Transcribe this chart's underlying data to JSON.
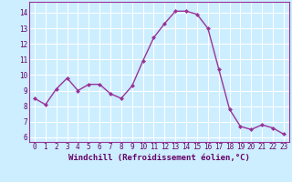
{
  "x": [
    0,
    1,
    2,
    3,
    4,
    5,
    6,
    7,
    8,
    9,
    10,
    11,
    12,
    13,
    14,
    15,
    16,
    17,
    18,
    19,
    20,
    21,
    22,
    23
  ],
  "y": [
    8.5,
    8.1,
    9.1,
    9.8,
    9.0,
    9.4,
    9.4,
    8.8,
    8.5,
    9.3,
    10.9,
    12.4,
    13.3,
    14.1,
    14.1,
    13.9,
    13.0,
    10.4,
    7.8,
    6.7,
    6.5,
    6.8,
    6.6,
    6.2
  ],
  "line_color": "#993399",
  "marker": "D",
  "marker_size": 2.0,
  "linewidth": 1.0,
  "xlabel": "Windchill (Refroidissement éolien,°C)",
  "xlabel_fontsize": 6.5,
  "xlabel_color": "#660066",
  "xtick_labels": [
    "0",
    "1",
    "2",
    "3",
    "4",
    "5",
    "6",
    "7",
    "8",
    "9",
    "10",
    "11",
    "12",
    "13",
    "14",
    "15",
    "16",
    "17",
    "18",
    "19",
    "20",
    "21",
    "22",
    "23"
  ],
  "ytick_vals": [
    6,
    7,
    8,
    9,
    10,
    11,
    12,
    13,
    14
  ],
  "ylim": [
    5.7,
    14.7
  ],
  "xlim": [
    -0.5,
    23.5
  ],
  "bg_color": "#cceeff",
  "grid_color": "#ffffff",
  "tick_color": "#660066",
  "tick_fontsize": 5.5,
  "spine_color": "#993399"
}
